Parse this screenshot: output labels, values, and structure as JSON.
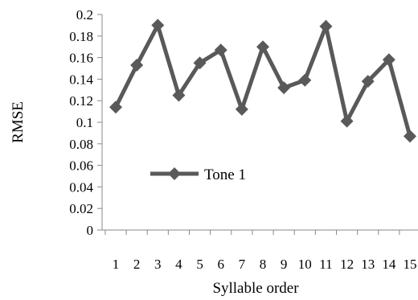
{
  "chart_data": {
    "type": "line",
    "xlabel": "Syllable order",
    "ylabel": "RMSE",
    "ylim": [
      0,
      0.2
    ],
    "y_ticks": [
      "0",
      "0.02",
      "0.04",
      "0.06",
      "0.08",
      "0.1",
      "0.12",
      "0.14",
      "0.16",
      "0.18",
      "0.2"
    ],
    "x": [
      "1",
      "2",
      "3",
      "4",
      "5",
      "6",
      "7",
      "8",
      "9",
      "10",
      "11",
      "12",
      "13",
      "14",
      "15"
    ],
    "grid": false,
    "legend": {
      "placement": "center-left"
    },
    "series": [
      {
        "name": "Tone 1",
        "color": "#595959",
        "marker": "diamond",
        "values": [
          0.114,
          0.153,
          0.19,
          0.125,
          0.155,
          0.167,
          0.112,
          0.17,
          0.132,
          0.139,
          0.189,
          0.101,
          0.138,
          0.158,
          0.087
        ]
      }
    ]
  }
}
